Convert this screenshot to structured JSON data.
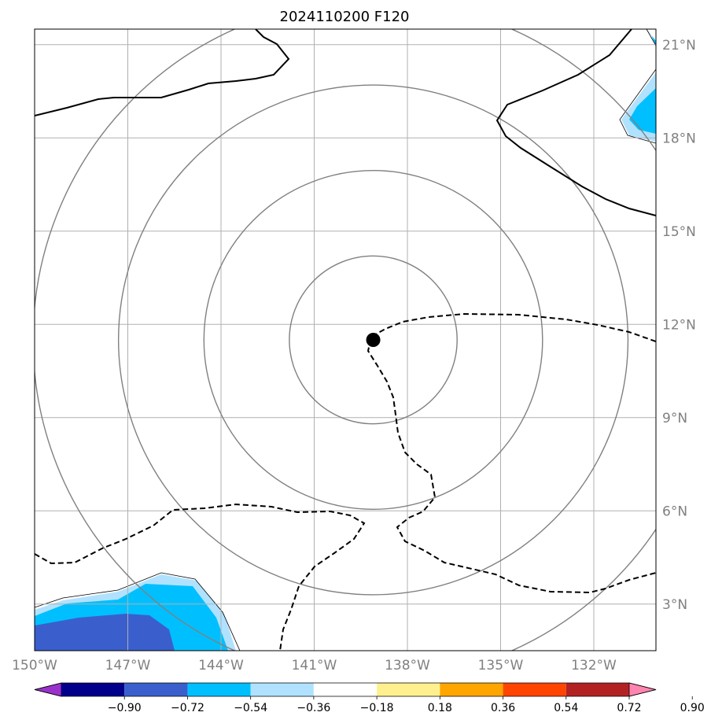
{
  "title": "2024110200 F120",
  "map": {
    "lon_range": [
      -150,
      -130
    ],
    "lat_range": [
      1.5,
      21.5
    ],
    "center": {
      "lon": -139.1,
      "lat": 11.5
    },
    "lon_ticks": [
      {
        "value": -150,
        "label": "150°W"
      },
      {
        "value": -147,
        "label": "147°W"
      },
      {
        "value": -144,
        "label": "144°W"
      },
      {
        "value": -141,
        "label": "141°W"
      },
      {
        "value": -138,
        "label": "138°W"
      },
      {
        "value": -135,
        "label": "135°W"
      },
      {
        "value": -132,
        "label": "132°W"
      }
    ],
    "lat_ticks": [
      {
        "value": 21,
        "label": "21°N"
      },
      {
        "value": 18,
        "label": "18°N"
      },
      {
        "value": 15,
        "label": "15°N"
      },
      {
        "value": 12,
        "label": "12°N"
      },
      {
        "value": 9,
        "label": "9°N"
      },
      {
        "value": 6,
        "label": "6°N"
      },
      {
        "value": 3,
        "label": "3°N"
      }
    ],
    "range_rings_deg": [
      2.7,
      5.45,
      8.2,
      10.95
    ]
  },
  "colorbar": {
    "colors": [
      "#9932cc",
      "#00008b",
      "#3a5fcd",
      "#00bfff",
      "#b0e2ff",
      "#ffffff",
      "#fff08f",
      "#ffa500",
      "#ff4500",
      "#b22222",
      "#ff85b0"
    ],
    "labels": [
      "−0.90",
      "−0.72",
      "−0.54",
      "−0.36",
      "−0.18",
      "0.18",
      "0.36",
      "0.54",
      "0.72",
      "0.90"
    ]
  }
}
